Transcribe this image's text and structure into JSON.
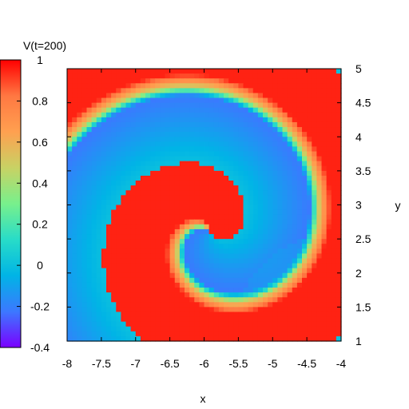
{
  "chart_data": {
    "type": "heatmap",
    "title": "",
    "xlabel": "x",
    "ylabel": "y",
    "colorbar_label": "V(t=200)",
    "xlim": [
      -8,
      -4
    ],
    "ylim": [
      1,
      5
    ],
    "zlim": [
      -0.4,
      1
    ],
    "x_ticks": [
      "-8",
      "-7.5",
      "-7",
      "-6.5",
      "-6",
      "-5.5",
      "-5",
      "-4.5",
      "-4"
    ],
    "y_ticks": [
      "1",
      "1.5",
      "2",
      "2.5",
      "3",
      "3.5",
      "4",
      "4.5",
      "5"
    ],
    "colorbar_ticks": [
      "-0.4",
      "-0.2",
      "0",
      "0.2",
      "0.4",
      "0.6",
      "0.8",
      "1"
    ],
    "colormap": [
      "#7a00ff",
      "#3c78ff",
      "#00b4e6",
      "#28dcc8",
      "#78f08c",
      "#c8d264",
      "#ffa050",
      "#ff7842",
      "#ff0000"
    ],
    "grid_resolution": [
      56,
      56
    ],
    "features": {
      "spiral_center": [
        -5.9,
        2.6
      ],
      "background_value": 0.0,
      "excited_value": 0.95,
      "refractory_value": -0.22
    }
  }
}
